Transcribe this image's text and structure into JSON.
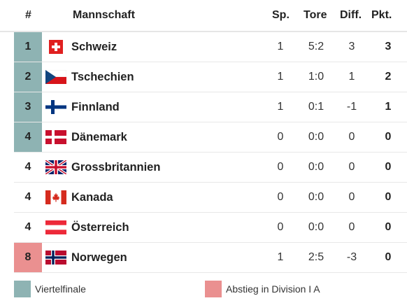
{
  "headers": {
    "rank": "#",
    "team": "Mannschaft",
    "sp": "Sp.",
    "tore": "Tore",
    "diff": "Diff.",
    "pkt": "Pkt."
  },
  "colors": {
    "qualified": "#8eb3b3",
    "relegation": "#ea9090"
  },
  "rows": [
    {
      "rank": "1",
      "status": "qualified",
      "flag": "switzerland-flag-icon",
      "team": "Schweiz",
      "sp": "1",
      "tore": "5:2",
      "diff": "3",
      "pkt": "3"
    },
    {
      "rank": "2",
      "status": "qualified",
      "flag": "czech-flag-icon",
      "team": "Tschechien",
      "sp": "1",
      "tore": "1:0",
      "diff": "1",
      "pkt": "2"
    },
    {
      "rank": "3",
      "status": "qualified",
      "flag": "finland-flag-icon",
      "team": "Finnland",
      "sp": "1",
      "tore": "0:1",
      "diff": "-1",
      "pkt": "1"
    },
    {
      "rank": "4",
      "status": "qualified",
      "flag": "denmark-flag-icon",
      "team": "Dänemark",
      "sp": "0",
      "tore": "0:0",
      "diff": "0",
      "pkt": "0"
    },
    {
      "rank": "4",
      "status": "",
      "flag": "great-britain-flag-icon",
      "team": "Grossbritannien",
      "sp": "0",
      "tore": "0:0",
      "diff": "0",
      "pkt": "0"
    },
    {
      "rank": "4",
      "status": "",
      "flag": "canada-flag-icon",
      "team": "Kanada",
      "sp": "0",
      "tore": "0:0",
      "diff": "0",
      "pkt": "0"
    },
    {
      "rank": "4",
      "status": "",
      "flag": "austria-flag-icon",
      "team": "Österreich",
      "sp": "0",
      "tore": "0:0",
      "diff": "0",
      "pkt": "0"
    },
    {
      "rank": "8",
      "status": "relegation",
      "flag": "norway-flag-icon",
      "team": "Norwegen",
      "sp": "1",
      "tore": "2:5",
      "diff": "-3",
      "pkt": "0"
    }
  ],
  "legend": {
    "qualified": "Viertelfinale",
    "relegation": "Abstieg in Division I A"
  }
}
